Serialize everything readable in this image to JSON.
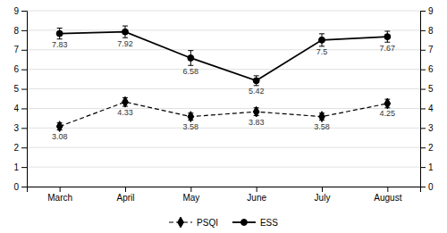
{
  "chart_data": {
    "type": "line",
    "categories": [
      "March",
      "April",
      "May",
      "June",
      "July",
      "August"
    ],
    "series": [
      {
        "name": "PSQI",
        "color": "#000000",
        "line_style": "dashed",
        "marker": "diamond",
        "values": [
          3.08,
          4.33,
          3.58,
          3.83,
          3.58,
          4.25
        ],
        "errors": [
          0.18,
          0.22,
          0.18,
          0.2,
          0.18,
          0.22
        ]
      },
      {
        "name": "ESS",
        "color": "#000000",
        "line_style": "solid",
        "marker": "circle",
        "values": [
          7.83,
          7.92,
          6.58,
          5.42,
          7.5,
          7.67
        ],
        "errors": [
          0.28,
          0.3,
          0.38,
          0.25,
          0.32,
          0.28
        ]
      }
    ],
    "ylim": [
      0,
      9
    ],
    "yticks": [
      0,
      1,
      2,
      3,
      4,
      5,
      6,
      7,
      8,
      9
    ],
    "y2lim": [
      0,
      9
    ],
    "y2ticks": [
      0,
      1,
      2,
      3,
      4,
      5,
      6,
      7,
      8,
      9
    ],
    "grid": true,
    "data_labels": true,
    "legend": "bottom"
  }
}
